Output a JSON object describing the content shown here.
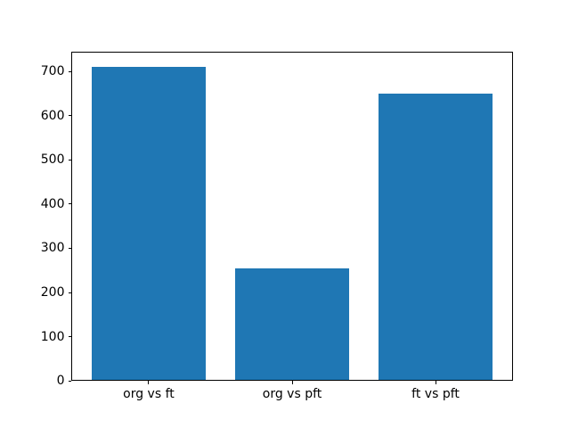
{
  "figure": {
    "background": "#ffffff"
  },
  "chart_data": {
    "type": "bar",
    "categories": [
      "org vs ft",
      "org vs pft",
      "ft vs pft"
    ],
    "values": [
      710,
      255,
      650
    ],
    "title": "",
    "xlabel": "",
    "ylabel": "",
    "ylim": [
      0,
      745.5
    ],
    "xlim": [
      -0.54,
      2.54
    ],
    "yticks": [
      0,
      100,
      200,
      300,
      400,
      500,
      600,
      700
    ],
    "bar_color": "#1f77b4",
    "bar_width": 0.8,
    "grid": false,
    "legend_position": "none",
    "axis_color": "#000000"
  }
}
